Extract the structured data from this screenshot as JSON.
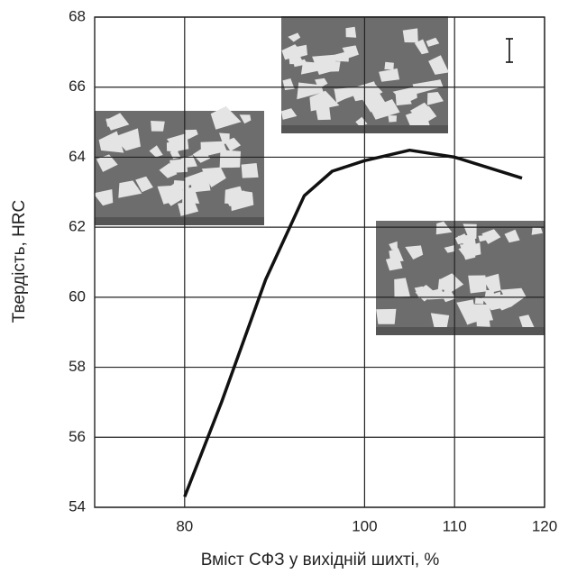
{
  "chart_data": {
    "type": "line",
    "xlabel": "Вміст СФЗ у вихідній шихті, %",
    "ylabel": "Твердість, HRC",
    "x": [
      80,
      84.1,
      89,
      93.3,
      96.4,
      100,
      105,
      110,
      117.5
    ],
    "series": [
      {
        "color": "#111111",
        "values": [
          54.3,
          57,
          60.5,
          62.9,
          63.6,
          63.9,
          64.2,
          64.0,
          63.4
        ]
      }
    ],
    "xlim": [
      70,
      120
    ],
    "xticks": [
      80,
      100,
      110,
      120
    ],
    "ylim": [
      54,
      68
    ],
    "yticks": [
      54,
      56,
      58,
      60,
      62,
      64,
      66,
      68
    ],
    "grid": true
  }
}
